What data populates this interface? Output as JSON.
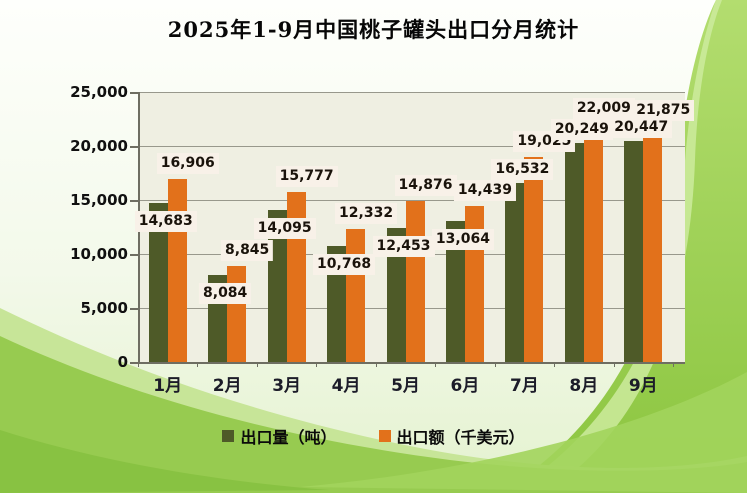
{
  "title": "2025年1-9月中国桃子罐头出口分月统计",
  "chart_data": {
    "type": "bar",
    "title": "2025年1-9月中国桃子罐头出口分月统计",
    "categories": [
      "1月",
      "2月",
      "3月",
      "4月",
      "5月",
      "6月",
      "7月",
      "8月",
      "9月"
    ],
    "series": [
      {
        "name": "出口量（吨）",
        "color": "#4e5a28",
        "values": [
          14683,
          8084,
          14095,
          10768,
          12453,
          13064,
          16532,
          20249,
          20447
        ]
      },
      {
        "name": "出口额（千美元）",
        "color": "#e2711b",
        "values": [
          16906,
          8845,
          15777,
          12332,
          14876,
          14439,
          19025,
          22009,
          21875
        ]
      }
    ],
    "xlabel": "",
    "ylabel": "",
    "ylim": [
      0,
      25000
    ],
    "ytick_step": 5000,
    "ytick_labels": [
      "0",
      "5,000",
      "10,000",
      "15,000",
      "20,000",
      "25,000"
    ],
    "grid": true,
    "legend_position": "bottom",
    "plot_background": "#efefe2",
    "data_label_background": "#f8f1e8"
  },
  "legend": {
    "items": [
      {
        "label": "出口量（吨）",
        "color": "#4e5a28"
      },
      {
        "label": "出口额（千美元）",
        "color": "#e2711b"
      }
    ]
  }
}
